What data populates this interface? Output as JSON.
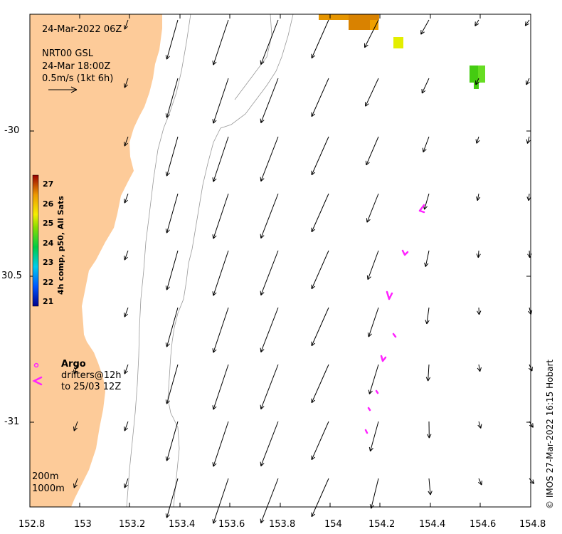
{
  "map": {
    "date": "24-Mar-2022 06Z",
    "model": "NRT00 GSL",
    "valid_time": "24-Mar 18:00Z",
    "vector_scale": "0.5m/s (1kt 6h)",
    "credit": "© IMOS 27-Mar-2022 16:15 Hobart",
    "longitude_ticks": [
      "152.8",
      "153",
      "153.2",
      "153.4",
      "153.6",
      "153.8",
      "154",
      "154.2",
      "154.4",
      "154.6",
      "154.8"
    ],
    "latitude_ticks": [
      "-30",
      "30.5",
      "-31"
    ],
    "colorbar": {
      "title": "4h comp, p50, All Sats",
      "ticks": [
        "27",
        "26",
        "25",
        "24",
        "23",
        "22",
        "21"
      ]
    },
    "legend": {
      "title": "Argo",
      "line1": "drifters@12h",
      "line2": "to 25/03 12Z"
    },
    "isobaths": [
      "200m",
      "1000m"
    ],
    "colors": {
      "land": "#fdcb99",
      "vectors": "#000000",
      "drifters": "#ff22ff",
      "isobath": "#999999"
    }
  }
}
